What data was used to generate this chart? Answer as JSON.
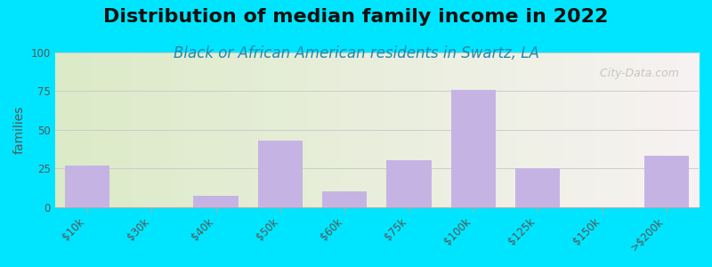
{
  "title": "Distribution of median family income in 2022",
  "subtitle": "Black or African American residents in Swartz, LA",
  "ylabel": "families",
  "categories": [
    "$10k",
    "$30k",
    "$40k",
    "$50k",
    "$60k",
    "$75k",
    "$100k",
    "$125k",
    "$150k",
    ">$200k"
  ],
  "values": [
    27,
    0,
    7,
    43,
    10,
    30,
    76,
    25,
    0,
    33
  ],
  "bar_color": "#c5b4e3",
  "background_outer": "#00e5ff",
  "ylim": [
    0,
    100
  ],
  "yticks": [
    0,
    25,
    50,
    75,
    100
  ],
  "title_fontsize": 16,
  "subtitle_fontsize": 12,
  "ylabel_fontsize": 10,
  "watermark": "  City-Data.com"
}
